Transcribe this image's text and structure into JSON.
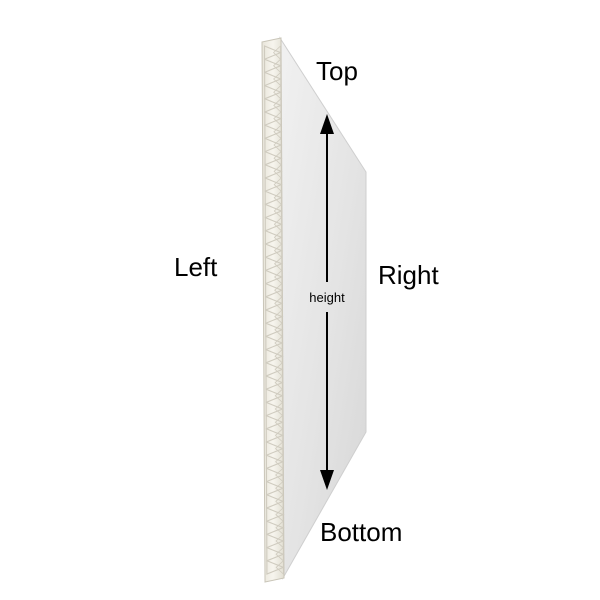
{
  "labels": {
    "top": "Top",
    "left": "Left",
    "right": "Right",
    "bottom": "Bottom",
    "height": "height"
  },
  "colors": {
    "background": "#ffffff",
    "panel_face_light": "#ececec",
    "panel_face_dark": "#d9d9d9",
    "edge_base": "#f4f2ea",
    "edge_flute_shadow": "#cfcbbf",
    "arrow": "#000000",
    "text": "#000000"
  }
}
